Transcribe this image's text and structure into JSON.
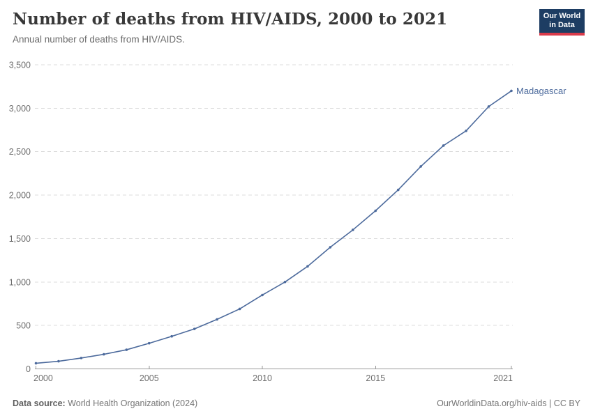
{
  "header": {
    "title": "Number of deaths from HIV/AIDS, 2000 to 2021",
    "subtitle": "Annual number of deaths from HIV/AIDS.",
    "logo": {
      "line1": "Our World",
      "line2": "in Data",
      "bg_color": "#1d3d63",
      "accent_color": "#d93a4a"
    }
  },
  "chart_data": {
    "type": "line",
    "title": "Number of deaths from HIV/AIDS, 2000 to 2021",
    "subtitle": "Annual number of deaths from HIV/AIDS.",
    "x": [
      2000,
      2001,
      2002,
      2003,
      2004,
      2005,
      2006,
      2007,
      2008,
      2009,
      2010,
      2011,
      2012,
      2013,
      2014,
      2015,
      2016,
      2017,
      2018,
      2019,
      2020,
      2021
    ],
    "series": [
      {
        "name": "Madagascar",
        "color": "#4C6A9C",
        "values": [
          65,
          88,
          125,
          168,
          220,
          295,
          375,
          460,
          570,
          690,
          850,
          1000,
          1180,
          1400,
          1600,
          1820,
          2060,
          2330,
          2570,
          2740,
          3020,
          3200
        ]
      }
    ],
    "xlabel": "",
    "ylabel": "",
    "ylim": [
      0,
      3500
    ],
    "xlim": [
      2000,
      2021
    ],
    "yticks": [
      0,
      500,
      1000,
      1500,
      2000,
      2500,
      3000,
      3500
    ],
    "ytick_labels": [
      "0",
      "500",
      "1,000",
      "1,500",
      "2,000",
      "2,500",
      "3,000",
      "3,500"
    ],
    "xticks": [
      2000,
      2005,
      2010,
      2015,
      2021
    ],
    "xtick_labels": [
      "2000",
      "2005",
      "2010",
      "2015",
      "2021"
    ],
    "grid": "horizontal-dashed",
    "legend_position": "end-of-line-label",
    "colors": {
      "gridline": "#dcdcdc",
      "axis": "#9a9a9a",
      "tick_label": "#6e6e6e"
    }
  },
  "footer": {
    "source_label": "Data source:",
    "source_text": " World Health Organization (2024)",
    "link_text": "OurWorldinData.org/hiv-aids | CC BY"
  }
}
